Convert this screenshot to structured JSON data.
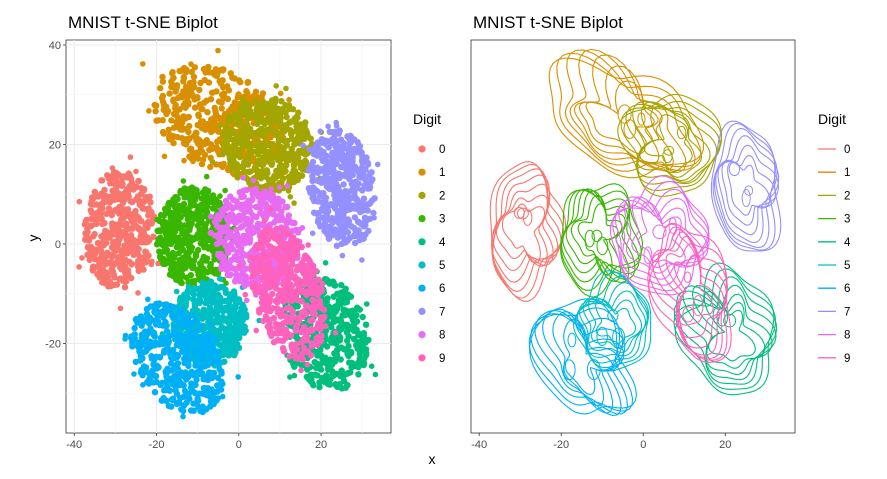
{
  "chart_data": [
    {
      "type": "scatter",
      "title": "MNIST t-SNE Biplot",
      "xlabel": "x",
      "ylabel": "y",
      "xlim": [
        -42,
        37
      ],
      "ylim": [
        -38,
        41
      ],
      "x_ticks": [
        -40,
        -20,
        0,
        20
      ],
      "y_ticks": [
        -20,
        0,
        20,
        40
      ],
      "legend": {
        "title": "Digit",
        "position": "right",
        "entries": [
          "0",
          "1",
          "2",
          "3",
          "4",
          "5",
          "6",
          "7",
          "8",
          "9"
        ]
      },
      "grid": true,
      "series": [
        {
          "name": "0",
          "color": "#F8766D",
          "cx": -29,
          "cy": 3,
          "rx": 8.5,
          "ry": 12,
          "rot": -5
        },
        {
          "name": "1",
          "color": "#D89000",
          "cx": -5,
          "cy": 25,
          "rx": 17,
          "ry": 10,
          "rot": -20
        },
        {
          "name": "2",
          "color": "#A3A500",
          "cx": 7,
          "cy": 20,
          "rx": 11,
          "ry": 9.5,
          "rot": -15
        },
        {
          "name": "3",
          "color": "#39B600",
          "cx": -11,
          "cy": 1.5,
          "rx": 9,
          "ry": 10,
          "rot": 0
        },
        {
          "name": "4",
          "color": "#00BF7D",
          "cx": 21,
          "cy": -18,
          "rx": 10,
          "ry": 12,
          "rot": 30
        },
        {
          "name": "5",
          "color": "#00BFC4",
          "cx": -7,
          "cy": -16,
          "rx": 9,
          "ry": 8.5,
          "rot": 0
        },
        {
          "name": "6",
          "color": "#00B0F6",
          "cx": -15,
          "cy": -23,
          "rx": 9,
          "ry": 13,
          "rot": 45
        },
        {
          "name": "7",
          "color": "#9590FF",
          "cx": 25,
          "cy": 11,
          "rx": 8,
          "ry": 12,
          "rot": 10
        },
        {
          "name": "8",
          "color": "#E76BF3",
          "cx": 4,
          "cy": 1,
          "rx": 11,
          "ry": 10,
          "rot": -20
        },
        {
          "name": "9",
          "color": "#FF62BC",
          "cx": 12,
          "cy": -10,
          "rx": 8,
          "ry": 14,
          "rot": 20
        }
      ]
    },
    {
      "type": "contour",
      "title": "MNIST t-SNE Biplot",
      "xlabel": "x",
      "ylabel": "",
      "xlim": [
        -42,
        37
      ],
      "ylim": [
        -38,
        41
      ],
      "x_ticks": [
        -40,
        -20,
        0,
        20
      ],
      "legend": {
        "title": "Digit",
        "position": "right",
        "entries": [
          "0",
          "1",
          "2",
          "3",
          "4",
          "5",
          "6",
          "7",
          "8",
          "9"
        ]
      },
      "grid": false
    }
  ]
}
